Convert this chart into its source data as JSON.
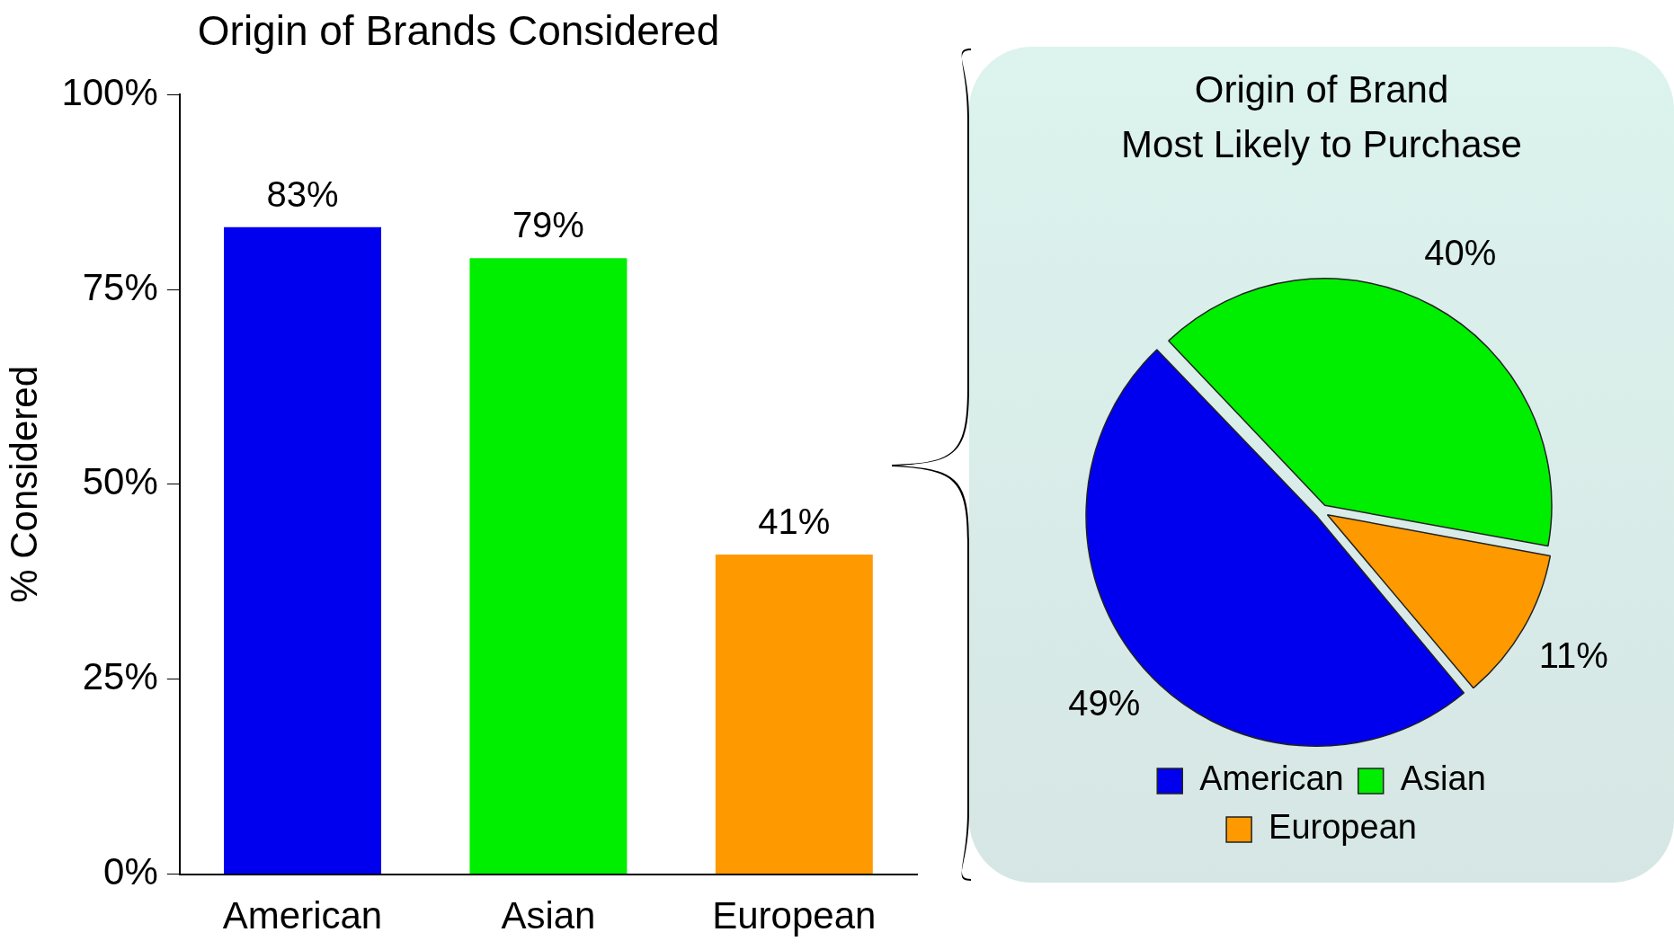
{
  "chart_data": [
    {
      "type": "bar",
      "title": "Origin of Brands Considered",
      "ylabel": "% Considered",
      "categories": [
        "American",
        "Asian",
        "European"
      ],
      "values": [
        83,
        79,
        41
      ],
      "colors": [
        "#0000ee",
        "#00ee00",
        "#ff9900"
      ],
      "value_labels": [
        "83%",
        "79%",
        "41%"
      ],
      "ylim": [
        0,
        100
      ],
      "yticks": [
        {
          "value": 0,
          "label": "0%"
        },
        {
          "value": 25,
          "label": "25%"
        },
        {
          "value": 50,
          "label": "50%"
        },
        {
          "value": 75,
          "label": "75%"
        },
        {
          "value": 100,
          "label": "100%"
        }
      ],
      "grid": false,
      "legend": false
    },
    {
      "type": "pie",
      "title": "Origin of Brand\nMost Likely to Purchase",
      "categories": [
        "American",
        "Asian",
        "European"
      ],
      "values": [
        49,
        40,
        11
      ],
      "colors": [
        "#0000ee",
        "#00ee00",
        "#ff9900"
      ],
      "value_labels": [
        "49%",
        "40%",
        "11%"
      ],
      "legend": "bottom"
    }
  ]
}
